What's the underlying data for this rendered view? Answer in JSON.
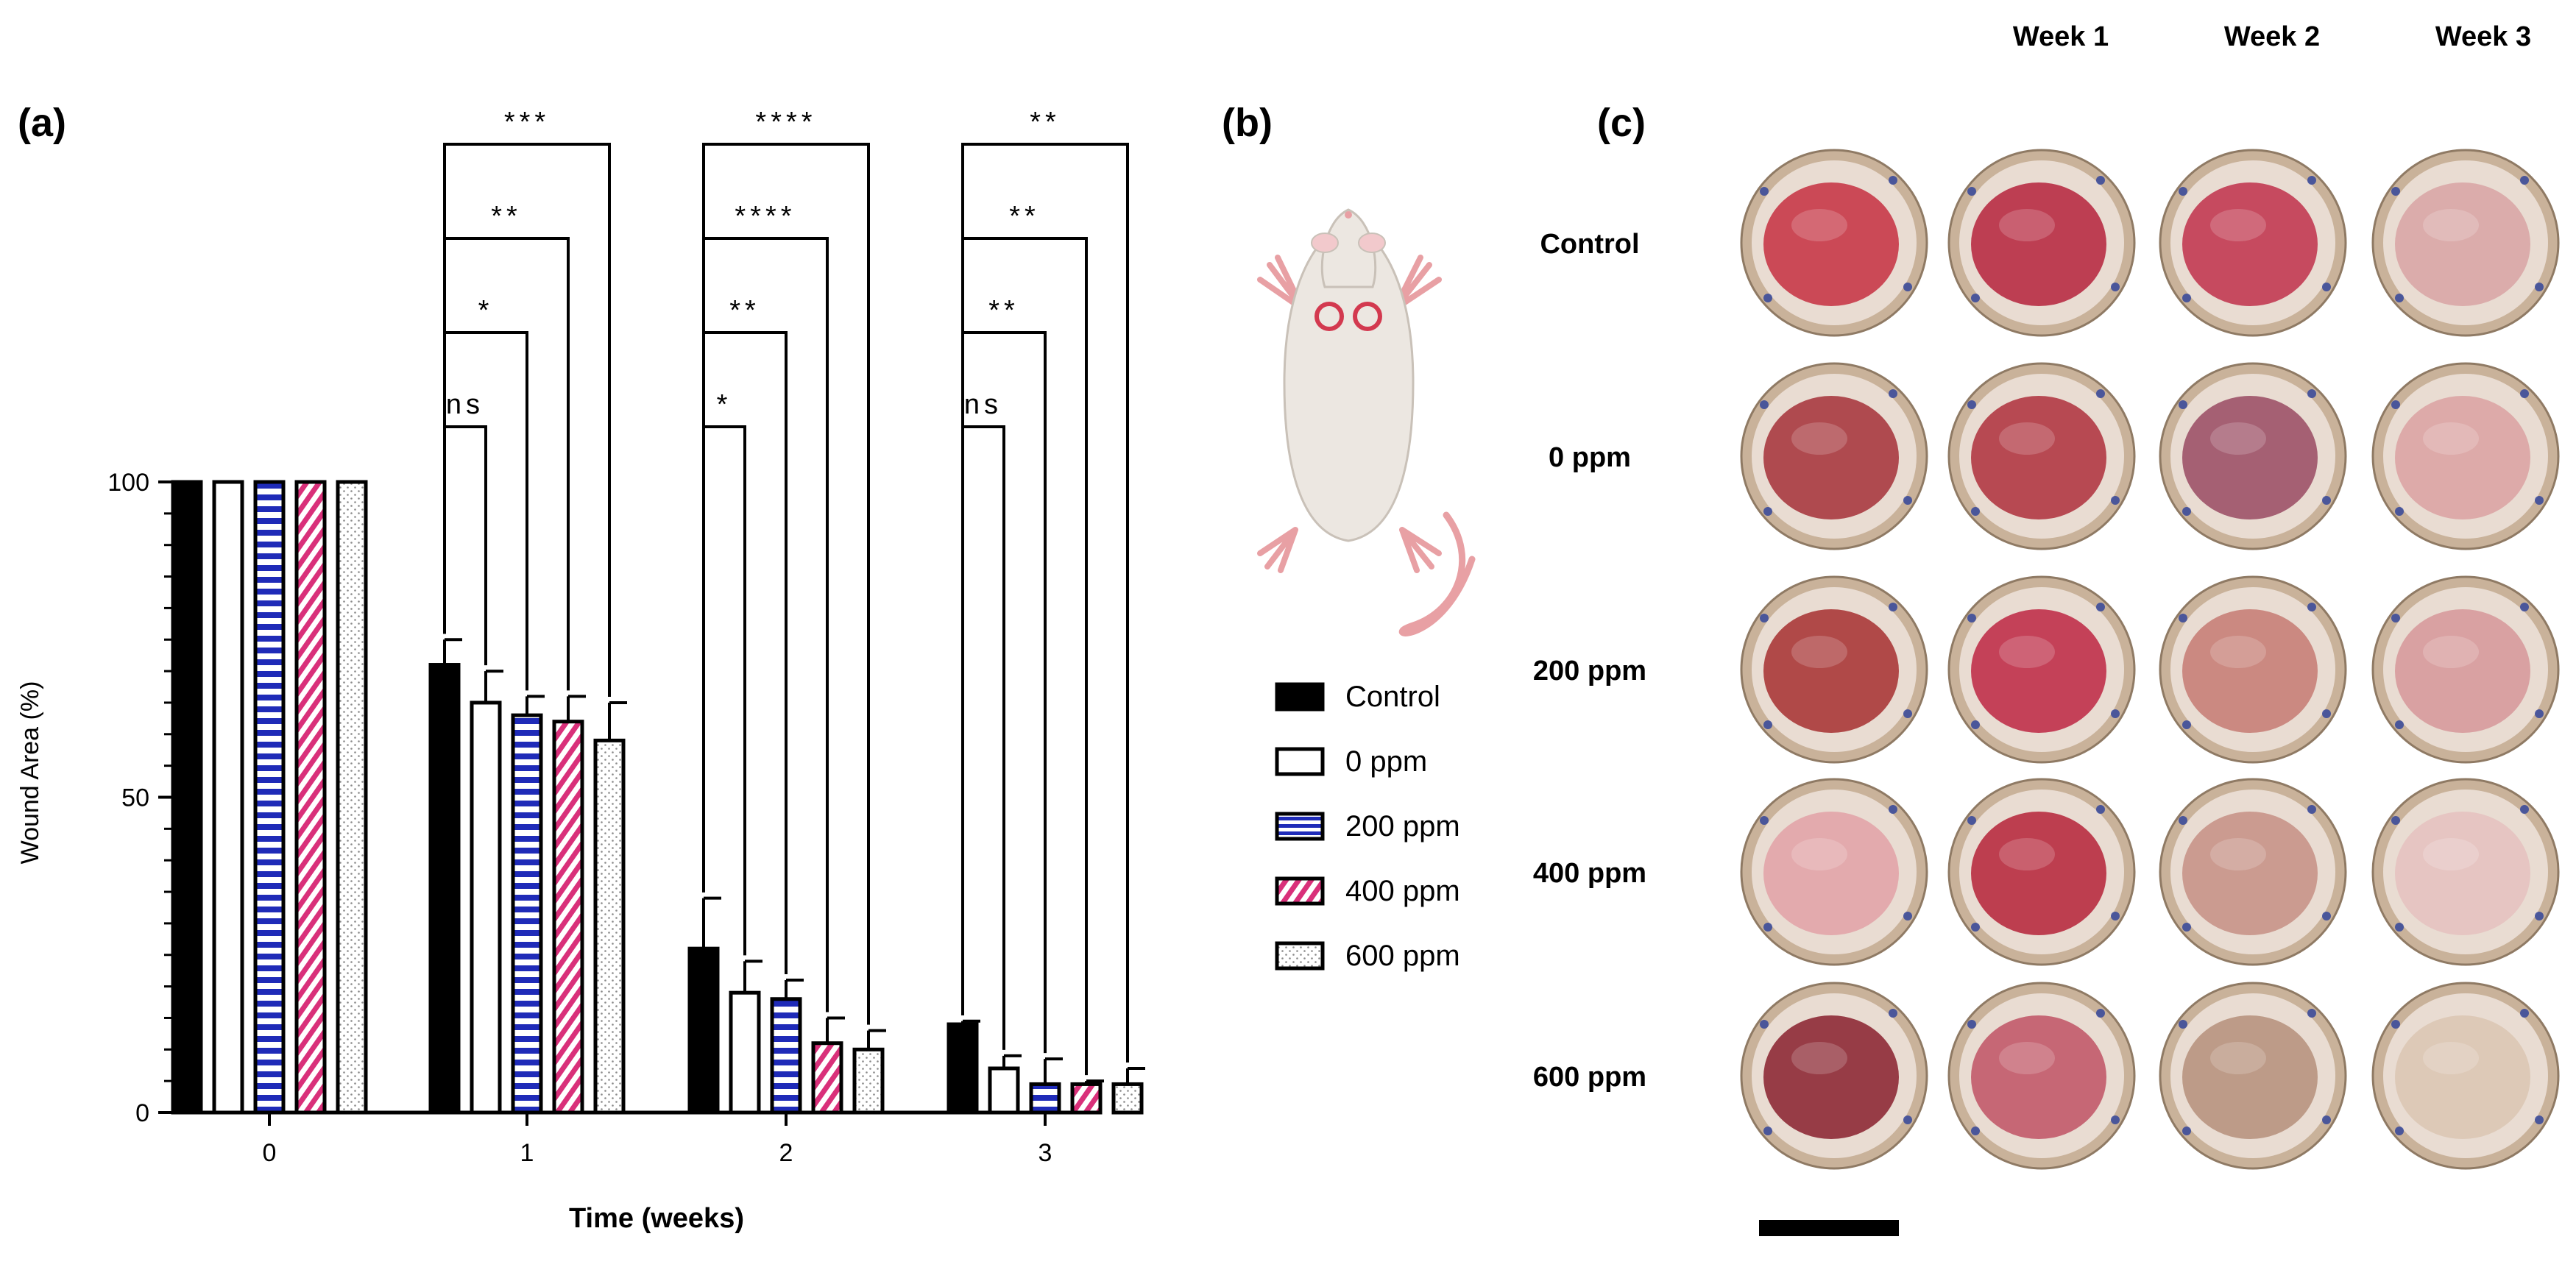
{
  "panels": {
    "a": "(a)",
    "b": "(b)",
    "c": "(c)"
  },
  "chart_data": {
    "type": "bar",
    "title": "",
    "xlabel": "Time (weeks)",
    "ylabel": "Wound Area (%)",
    "ylim": [
      0,
      100
    ],
    "yticks": [
      0,
      50,
      100
    ],
    "categories": [
      "0",
      "1",
      "2",
      "3"
    ],
    "series": [
      {
        "name": "Control",
        "values": [
          100,
          71,
          26,
          14
        ],
        "errors": [
          0,
          4,
          8,
          0.5
        ],
        "pattern": "solid",
        "color": "#000000"
      },
      {
        "name": "0 ppm",
        "values": [
          100,
          65,
          19,
          7
        ],
        "errors": [
          0,
          5,
          5,
          2
        ],
        "pattern": "hollow",
        "color": "#ffffff"
      },
      {
        "name": "200 ppm",
        "values": [
          100,
          63,
          18,
          4.5
        ],
        "errors": [
          0,
          3,
          3,
          4
        ],
        "pattern": "blue-stripes",
        "color": "#1f2bb8"
      },
      {
        "name": "400 ppm",
        "values": [
          100,
          62,
          11,
          4.5
        ],
        "errors": [
          0,
          4,
          4,
          0.5
        ],
        "pattern": "pink-diagonal",
        "color": "#d9307a"
      },
      {
        "name": "600 ppm",
        "values": [
          100,
          59,
          10,
          4.5
        ],
        "errors": [
          0,
          6,
          3,
          2.5
        ],
        "pattern": "dots",
        "color": "#9a9a9a"
      }
    ],
    "significance": [
      {
        "group": "1",
        "labels": [
          "ns",
          "*",
          "**",
          "***"
        ]
      },
      {
        "group": "2",
        "labels": [
          "*",
          "**",
          "****",
          "****"
        ]
      },
      {
        "group": "3",
        "labels": [
          "ns",
          "**",
          "**",
          "**"
        ]
      }
    ],
    "legend_placement": "right",
    "grid": false
  },
  "model_figure": {
    "subject": "rat-icon",
    "wound_marks": 2
  },
  "photo_grid": {
    "columns": [
      "Week 1",
      "Week 2",
      "Week 3"
    ],
    "rows": [
      {
        "label": "Control",
        "tones": [
          "#c83848",
          "#b82c44",
          "#c23a52",
          "#d9a6a6"
        ]
      },
      {
        "label": "0 ppm",
        "tones": [
          "#a83a40",
          "#b13944",
          "#9d5268",
          "#dba4a4"
        ]
      },
      {
        "label": "200 ppm",
        "tones": [
          "#aa3838",
          "#c0304a",
          "#c88078",
          "#d79a9c"
        ]
      },
      {
        "label": "400 ppm",
        "tones": [
          "#e2a4a8",
          "#b82c40",
          "#c89488",
          "#e6c2c0"
        ]
      },
      {
        "label": "600 ppm",
        "tones": [
          "#8e2a36",
          "#c25a6a",
          "#b89480",
          "#dcc6b4"
        ]
      }
    ],
    "scale_bar": true
  }
}
